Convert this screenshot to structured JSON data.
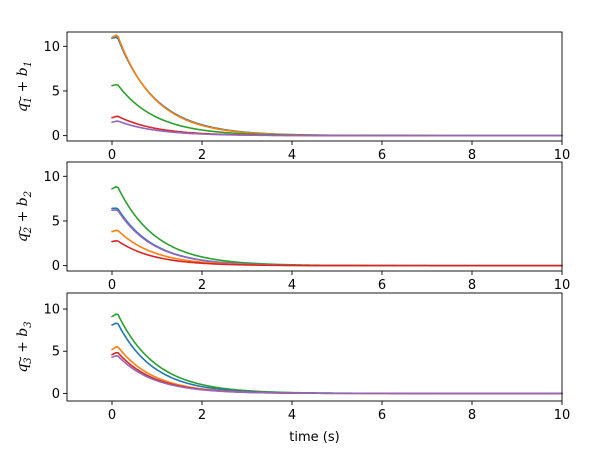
{
  "chart_data": [
    {
      "type": "line",
      "ylabel": {
        "q": "q",
        "b": "b",
        "sub": "1"
      },
      "xlabel": "",
      "xlim": [
        -1,
        10
      ],
      "ylim": [
        -0.6,
        11.6
      ],
      "xticks": [
        0,
        2,
        4,
        6,
        8,
        10
      ],
      "yticks": [
        0,
        5,
        10
      ],
      "series": [
        {
          "color": "#1f77b4",
          "y0": 10.9,
          "peak": 11.05,
          "tau": 0.85
        },
        {
          "color": "#ff7f0e",
          "y0": 11.0,
          "peak": 11.3,
          "tau": 0.82
        },
        {
          "color": "#2ca02c",
          "y0": 5.6,
          "peak": 5.75,
          "tau": 0.85
        },
        {
          "color": "#d62728",
          "y0": 2.0,
          "peak": 2.2,
          "tau": 0.85
        },
        {
          "color": "#9467bd",
          "y0": 1.5,
          "peak": 1.65,
          "tau": 0.85
        }
      ]
    },
    {
      "type": "line",
      "ylabel": {
        "q": "q",
        "b": "b",
        "sub": "2"
      },
      "xlabel": "",
      "xlim": [
        -1,
        10
      ],
      "ylim": [
        -0.6,
        11.6
      ],
      "xticks": [
        0,
        2,
        4,
        6,
        8,
        10
      ],
      "yticks": [
        0,
        5,
        10
      ],
      "series": [
        {
          "color": "#2ca02c",
          "y0": 8.6,
          "peak": 8.9,
          "tau": 0.85
        },
        {
          "color": "#1f77b4",
          "y0": 6.4,
          "peak": 6.45,
          "tau": 0.8
        },
        {
          "color": "#9467bd",
          "y0": 6.2,
          "peak": 6.25,
          "tau": 0.8
        },
        {
          "color": "#ff7f0e",
          "y0": 3.8,
          "peak": 4.0,
          "tau": 0.8
        },
        {
          "color": "#d62728",
          "y0": 2.7,
          "peak": 2.8,
          "tau": 0.8
        }
      ]
    },
    {
      "type": "line",
      "ylabel": {
        "q": "q",
        "b": "b",
        "sub": "3"
      },
      "xlabel": "time (s)",
      "xlim": [
        -1,
        10
      ],
      "ylim": [
        -0.9,
        11.9
      ],
      "xticks": [
        0,
        2,
        4,
        6,
        8,
        10
      ],
      "yticks": [
        0,
        5,
        10
      ],
      "series": [
        {
          "color": "#2ca02c",
          "y0": 9.1,
          "peak": 9.5,
          "tau": 0.85
        },
        {
          "color": "#1f77b4",
          "y0": 8.1,
          "peak": 8.4,
          "tau": 0.8
        },
        {
          "color": "#ff7f0e",
          "y0": 5.2,
          "peak": 5.6,
          "tau": 0.8
        },
        {
          "color": "#d62728",
          "y0": 4.6,
          "peak": 4.9,
          "tau": 0.8
        },
        {
          "color": "#9467bd",
          "y0": 4.3,
          "peak": 4.5,
          "tau": 0.8
        }
      ]
    }
  ]
}
